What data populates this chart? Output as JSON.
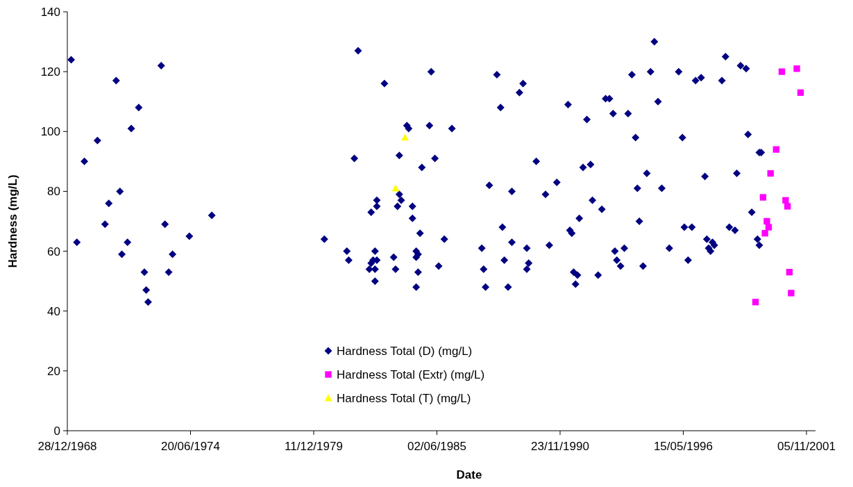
{
  "chart_data": {
    "type": "scatter",
    "xlabel": "Date",
    "ylabel": "Hardness (mg/L)",
    "xlim": [
      "1968-12-28",
      "2002-04-01"
    ],
    "xticks": [
      {
        "value": "1968-12-28",
        "label": "28/12/1968"
      },
      {
        "value": "1974-06-20",
        "label": "20/06/1974"
      },
      {
        "value": "1979-12-11",
        "label": "11/12/1979"
      },
      {
        "value": "1985-06-02",
        "label": "02/06/1985"
      },
      {
        "value": "1990-11-23",
        "label": "23/11/1990"
      },
      {
        "value": "1996-05-15",
        "label": "15/05/1996"
      },
      {
        "value": "2001-11-05",
        "label": "05/11/2001"
      }
    ],
    "ylim": [
      0,
      140
    ],
    "yticks": [
      0,
      20,
      40,
      60,
      80,
      100,
      120,
      140
    ],
    "grid": false,
    "legend": "bottom",
    "series": [
      {
        "name": "Hardness Total (D) (mg/L)",
        "color": "#000080",
        "marker": "diamond",
        "x": [
          "1969-03",
          "1973-03",
          "1971-03",
          "1972-03",
          "1971-11",
          "1970-05",
          "1969-10",
          "1971-05",
          "1970-11",
          "1975-06",
          "1970-09",
          "1973-05",
          "1969-06",
          "1971-09",
          "1974-06",
          "1971-06",
          "1973-09",
          "1972-06",
          "1973-07",
          "1972-07",
          "1972-08",
          "1981-12",
          "1985-03",
          "1983-02",
          "1984-02",
          "1984-03",
          "1985-02",
          "1986-02",
          "1981-10",
          "1983-10",
          "1985-05",
          "1984-10",
          "1983-10",
          "1983-11",
          "1982-10",
          "1982-10",
          "1983-09",
          "1984-05",
          "1982-07",
          "1984-05",
          "1984-09",
          "1985-10",
          "1980-06",
          "1987-06",
          "1981-06",
          "1982-09",
          "1984-07",
          "1984-08",
          "1981-07",
          "1982-10",
          "1982-08",
          "1983-07",
          "1984-07",
          "1982-07",
          "1982-06",
          "1982-09",
          "1983-08",
          "1984-08",
          "1985-07",
          "1982-09",
          "1984-07",
          "1987-07",
          "1987-08",
          "1988-02",
          "1989-04",
          "1989-02",
          "1988-04",
          "1991-04",
          "1992-12",
          "1993-02",
          "1994-02",
          "1994-12",
          "1992-02",
          "1993-04",
          "1993-12",
          "1994-04",
          "1989-11",
          "1991-12",
          "1992-04",
          "1994-10",
          "1987-10",
          "1988-10",
          "1990-10",
          "1990-04",
          "1994-05",
          "1992-05",
          "1992-10",
          "1991-10",
          "1994-06",
          "1988-05",
          "1991-05",
          "1991-06",
          "1988-10",
          "1989-06",
          "1990-06",
          "1993-05",
          "1993-10",
          "1988-06",
          "1989-07",
          "1989-06",
          "1993-06",
          "1993-08",
          "1994-08",
          "1988-08",
          "1991-07",
          "1991-09",
          "1991-08",
          "1992-08",
          "1995-02",
          "1998-04",
          "1996-03",
          "1996-12",
          "1997-03",
          "1998-02",
          "1998-12",
          "1999-03",
          "1995-04",
          "1996-05",
          "1999-04",
          "1999-10",
          "1999-11",
          "1995-06",
          "1997-05",
          "1998-10",
          "1999-06",
          "1996-06",
          "1996-10",
          "1998-06",
          "1998-09",
          "1997-06",
          "1997-09",
          "1997-10",
          "1997-07",
          "1997-08",
          "1999-09",
          "1999-10",
          "1995-10",
          "1996-08"
        ],
        "values": [
          124,
          122,
          117,
          108,
          101,
          97,
          90,
          80,
          76,
          72,
          69,
          69,
          63,
          63,
          65,
          59,
          59,
          53,
          53,
          47,
          43,
          127,
          120,
          116,
          102,
          101,
          102,
          101,
          91,
          92,
          91,
          88,
          79,
          77,
          77,
          75,
          75,
          75,
          73,
          71,
          66,
          64,
          64,
          61,
          60,
          60,
          60,
          59,
          57,
          57,
          57,
          58,
          58,
          56,
          54,
          54,
          54,
          53,
          55,
          50,
          48,
          54,
          48,
          119,
          116,
          113,
          108,
          109,
          111,
          111,
          119,
          120,
          104,
          106,
          106,
          98,
          90,
          88,
          89,
          86,
          82,
          80,
          83,
          79,
          81,
          77,
          74,
          71,
          70,
          68,
          67,
          66,
          63,
          61,
          62,
          60,
          61,
          57,
          56,
          54,
          57,
          55,
          55,
          48,
          53,
          52,
          49,
          52,
          130,
          125,
          120,
          117,
          118,
          117,
          122,
          121,
          110,
          98,
          99,
          93,
          93,
          81,
          85,
          86,
          73,
          68,
          68,
          68,
          67,
          64,
          63,
          62,
          61,
          60,
          64,
          62,
          61,
          57
        ]
      },
      {
        "name": "Hardness Total (Extr) (mg/L)",
        "color": "#ff00ff",
        "marker": "square",
        "x": [
          "2000-10",
          "2001-06",
          "2001-08",
          "2000-07",
          "2000-04",
          "1999-12",
          "2000-12",
          "2001-01",
          "2000-02",
          "2000-03",
          "2000-01",
          "2001-02",
          "2001-03",
          "1999-08"
        ],
        "values": [
          120,
          121,
          113,
          94,
          86,
          78,
          77,
          75,
          70,
          68,
          66,
          53,
          46,
          43
        ]
      },
      {
        "name": "Hardness Total (T) (mg/L)",
        "color": "#ffff00",
        "marker": "triangle",
        "x": [
          "1983-08",
          "1984-01"
        ],
        "values": [
          81,
          98
        ]
      }
    ]
  }
}
